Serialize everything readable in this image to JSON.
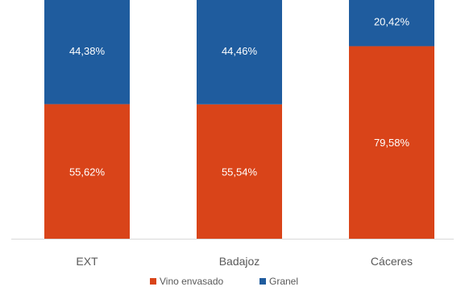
{
  "chart_data": {
    "type": "bar",
    "stacked": "percent",
    "categories": [
      "EXT",
      "Badajoz",
      "Cáceres"
    ],
    "series": [
      {
        "name": "Vino envasado",
        "values": [
          55.62,
          55.54,
          79.58
        ],
        "labels": [
          "55,62%",
          "55,54%",
          "79,58%"
        ],
        "color": "#d94419"
      },
      {
        "name": "Granel",
        "values": [
          44.38,
          44.46,
          20.42
        ],
        "labels": [
          "44,38%",
          "44,46%",
          "20,42%"
        ],
        "color": "#1f5c9e"
      }
    ],
    "ylim": [
      0,
      100
    ],
    "legend": "bottom",
    "grid": false
  }
}
